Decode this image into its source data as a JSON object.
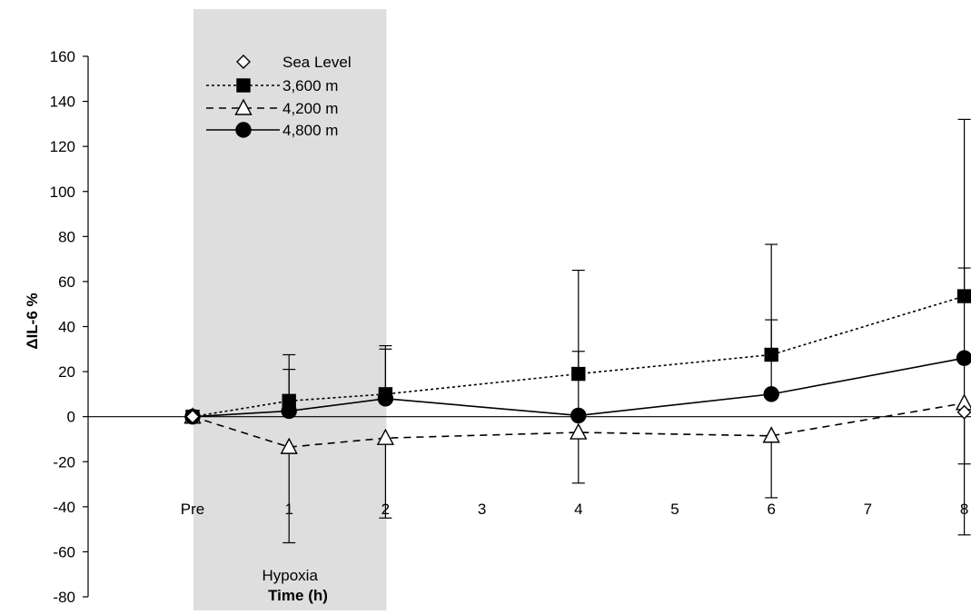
{
  "chart_data": {
    "type": "line",
    "title": "",
    "xlabel": "Time (h)",
    "ylabel": "ΔIL-6 %",
    "ylim": [
      -80,
      160
    ],
    "yticks": [
      -80,
      -60,
      -40,
      -20,
      0,
      20,
      40,
      60,
      80,
      100,
      120,
      140,
      160
    ],
    "xlim": [
      -0.5,
      8.05
    ],
    "categories": [
      "Pre",
      "1",
      "2",
      "3",
      "4",
      "5",
      "6",
      "7",
      "8"
    ],
    "category_x": [
      0,
      1,
      2,
      3,
      4,
      5,
      6,
      7,
      8
    ],
    "shaded_region": {
      "x": [
        0,
        2
      ],
      "label": "Hypoxia",
      "color": "#dedede"
    },
    "legend_position": "top-left",
    "grid": false,
    "series": [
      {
        "name": "Sea Level",
        "marker": "diamond",
        "fill": "#ffffff",
        "line": "none",
        "x": [
          0,
          8
        ],
        "values": [
          0,
          2
        ],
        "err_hi": [
          null,
          null
        ],
        "err_lo": [
          null,
          null
        ]
      },
      {
        "name": "3,600 m",
        "marker": "square",
        "fill": "#000000",
        "line": "dotted",
        "x": [
          0,
          1,
          2,
          4,
          6,
          8
        ],
        "values": [
          0,
          7,
          10,
          19,
          27.5,
          53.5
        ],
        "err_hi": [
          null,
          21,
          30,
          29,
          43,
          66
        ],
        "err_lo": [
          null,
          null,
          null,
          null,
          null,
          null
        ]
      },
      {
        "name": "4,200 m",
        "marker": "triangle",
        "fill": "#ffffff",
        "line": "dashed",
        "x": [
          0,
          1,
          2,
          4,
          6,
          8
        ],
        "values": [
          0,
          -13.5,
          -9.5,
          -7,
          -8.5,
          6
        ],
        "err_hi": [
          null,
          null,
          null,
          null,
          null,
          null
        ],
        "err_lo": [
          null,
          -56,
          -45,
          -29.5,
          -36,
          -52.5
        ]
      },
      {
        "name": "4,800 m",
        "marker": "circle",
        "fill": "#000000",
        "line": "solid",
        "x": [
          0,
          1,
          2,
          4,
          6,
          8
        ],
        "values": [
          0,
          2.5,
          8,
          0.5,
          10,
          26
        ],
        "err_hi": [
          null,
          27.5,
          31.5,
          65,
          76.5,
          132
        ],
        "err_lo": [
          null,
          null,
          null,
          null,
          null,
          -21
        ]
      }
    ]
  }
}
